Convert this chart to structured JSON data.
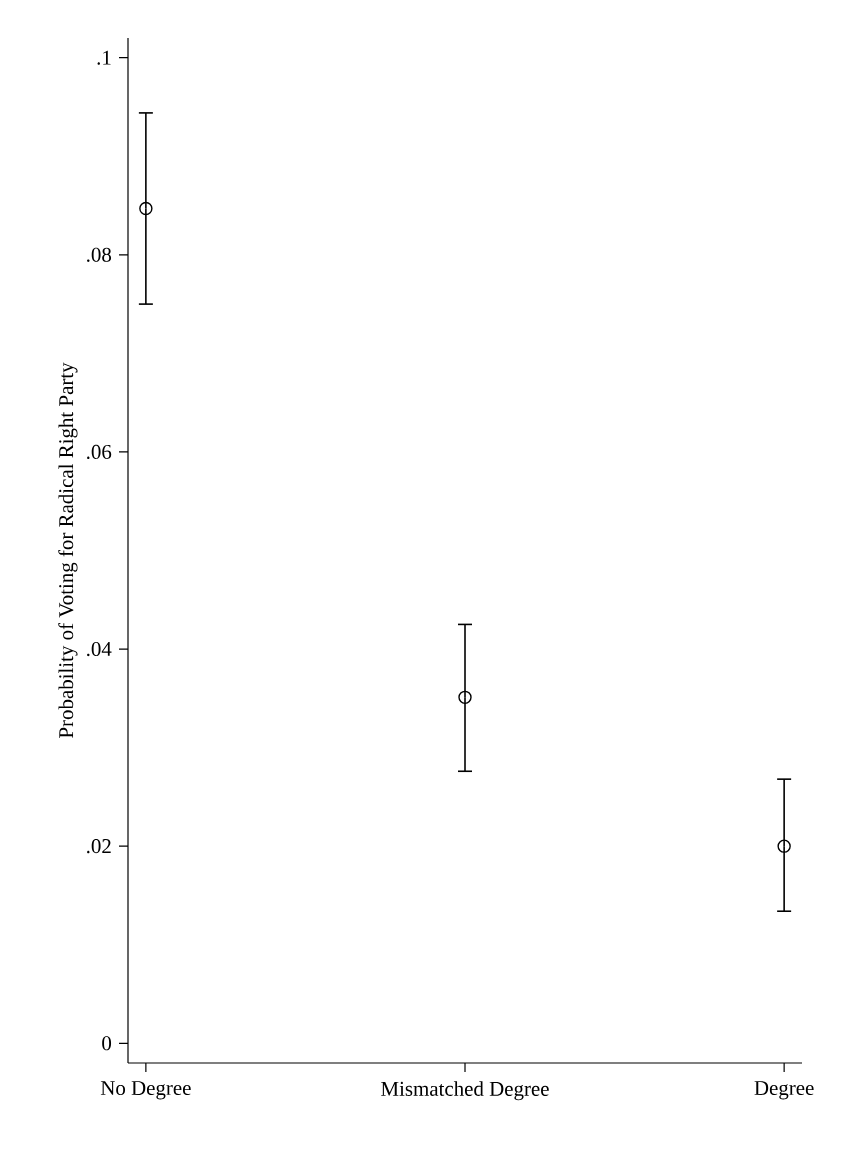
{
  "chart_data": {
    "type": "scatter",
    "ylabel": "Probability of Voting for Radical Right Party",
    "categories": [
      "No Degree",
      "Mismatched Degree",
      "Degree"
    ],
    "values": [
      0.0847,
      0.0351,
      0.02
    ],
    "errors": [
      [
        0.075,
        0.0944
      ],
      [
        0.0276,
        0.0425
      ],
      [
        0.0134,
        0.0268
      ]
    ],
    "color": "#000000",
    "marker": "circle",
    "ylim": [
      -0.002,
      0.102
    ],
    "yticks": [
      {
        "value": 0,
        "label": "0"
      },
      {
        "value": 0.02,
        "label": ".02"
      },
      {
        "value": 0.04,
        "label": ".04"
      },
      {
        "value": 0.06,
        "label": ".06"
      },
      {
        "value": 0.08,
        "label": ".08"
      },
      {
        "value": 0.1,
        "label": ".1"
      }
    ]
  }
}
